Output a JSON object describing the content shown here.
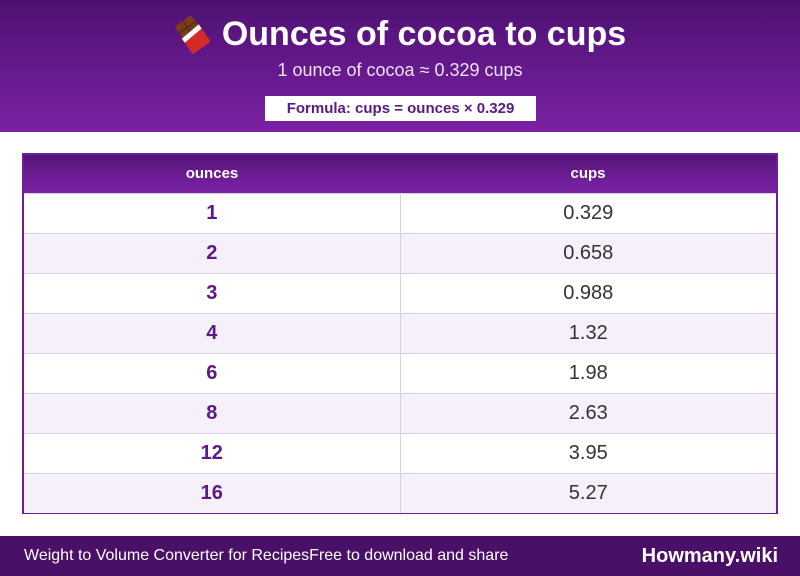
{
  "header": {
    "icon": "chocolate-bar-icon",
    "title": "Ounces of cocoa to cups",
    "subtitle": "1 ounce of cocoa ≈ 0.329 cups",
    "formula": "Formula: cups = ounces × 0.329"
  },
  "table": {
    "columns": [
      "ounces",
      "cups"
    ],
    "rows": [
      {
        "ounces": "1",
        "cups": "0.329"
      },
      {
        "ounces": "2",
        "cups": "0.658"
      },
      {
        "ounces": "3",
        "cups": "0.988"
      },
      {
        "ounces": "4",
        "cups": "1.32"
      },
      {
        "ounces": "6",
        "cups": "1.98"
      },
      {
        "ounces": "8",
        "cups": "2.63"
      },
      {
        "ounces": "12",
        "cups": "3.95"
      },
      {
        "ounces": "16",
        "cups": "5.27"
      }
    ]
  },
  "footer": {
    "left_text": "Weight to Volume Converter for Recipes",
    "left_suffix": "Free to download and share",
    "brand": "Howmany.wiki"
  },
  "colors": {
    "header_top": "#4e1172",
    "header_bottom": "#7a22a4",
    "accent_text": "#5b1887",
    "footer_bg": "#4a1068"
  }
}
